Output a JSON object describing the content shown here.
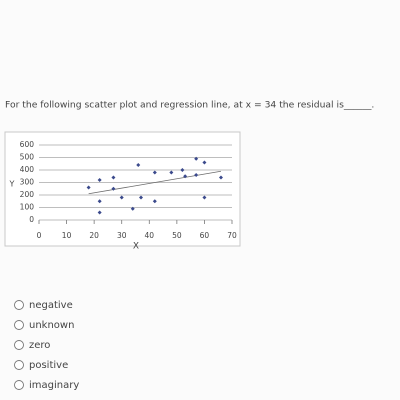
{
  "question": "For the following scatter plot and regression line, at x = 34 the residual is______.",
  "chart_data": {
    "type": "scatter",
    "x_label": "X",
    "y_label": "Y",
    "x": [
      18,
      22,
      22,
      22,
      27,
      27,
      30,
      34,
      36,
      37,
      42,
      42,
      48,
      52,
      53,
      57,
      57,
      60,
      60,
      66
    ],
    "values": [
      260,
      320,
      150,
      60,
      340,
      250,
      180,
      90,
      440,
      180,
      380,
      150,
      380,
      400,
      350,
      490,
      360,
      460,
      180,
      340
    ],
    "color": "#3b4a8c",
    "trendline": {
      "x": [
        18,
        66
      ],
      "y": [
        210,
        390
      ],
      "color": "#6b6b6b"
    },
    "xlim": [
      0,
      70
    ],
    "xticks": [
      0,
      10,
      20,
      30,
      40,
      50,
      60,
      70
    ],
    "ylim": [
      0,
      600
    ],
    "yticks": [
      0,
      100,
      200,
      300,
      400,
      500,
      600
    ],
    "grid": true
  },
  "options": [
    "negative",
    "unknown",
    "zero",
    "positive",
    "imaginary"
  ]
}
